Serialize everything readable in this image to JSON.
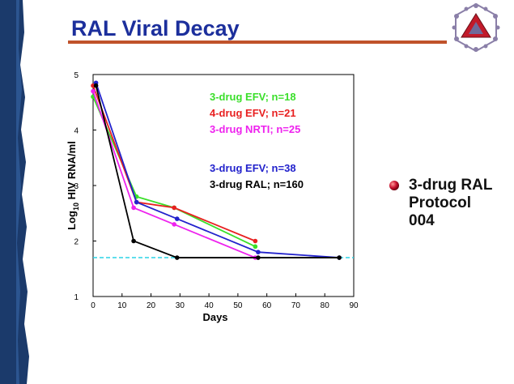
{
  "slide": {
    "title": "RAL Viral Decay",
    "bullet": {
      "lines": [
        "3-drug RAL",
        "Protocol",
        "004"
      ],
      "dot_color": "#c8102e"
    }
  },
  "colors": {
    "band": "#1b3a6b",
    "title": "#1c2f9c",
    "rule": "#c0532b"
  },
  "logo": {
    "icon": "triangle-in-hexagon-logo-icon"
  },
  "chart_data": {
    "type": "line",
    "title": "",
    "xlabel": "Days",
    "ylabel_pre": "Log",
    "ylabel_sub": "10",
    "ylabel_post": " HIV RNA/ml",
    "xlim": [
      0,
      90
    ],
    "ylim": [
      1,
      5
    ],
    "xticks": [
      "0",
      "10",
      "20",
      "30",
      "40",
      "50",
      "60",
      "70",
      "80",
      "90"
    ],
    "yticks": [
      "1",
      "2",
      "3",
      "4",
      "5"
    ],
    "grid": false,
    "legend_position": "top-right",
    "reference_line": {
      "y": 1.7,
      "color": "#2ad4e6",
      "style": "dashed"
    },
    "series": [
      {
        "name": "3-drug EFV; n=18",
        "color": "#3adf2a",
        "x": [
          0,
          15,
          28,
          56
        ],
        "y": [
          4.6,
          2.8,
          2.6,
          1.9
        ]
      },
      {
        "name": "4-drug EFV; n=21",
        "color": "#e82020",
        "x": [
          0,
          15,
          28,
          56
        ],
        "y": [
          4.8,
          2.7,
          2.6,
          2.0
        ]
      },
      {
        "name": "3-drug NRTI; n=25",
        "color": "#ee22ee",
        "x": [
          0,
          14,
          28,
          56
        ],
        "y": [
          4.7,
          2.6,
          2.3,
          1.7
        ]
      },
      {
        "name": "3-drug EFV; n=38",
        "color": "#2222cc",
        "x": [
          1,
          15,
          29,
          57,
          85
        ],
        "y": [
          4.85,
          2.7,
          2.4,
          1.8,
          1.7
        ]
      },
      {
        "name": "3-drug RAL; n=160",
        "color": "#000000",
        "x": [
          1,
          14,
          29,
          57,
          85
        ],
        "y": [
          4.8,
          2.0,
          1.7,
          1.7,
          1.7
        ]
      }
    ]
  }
}
